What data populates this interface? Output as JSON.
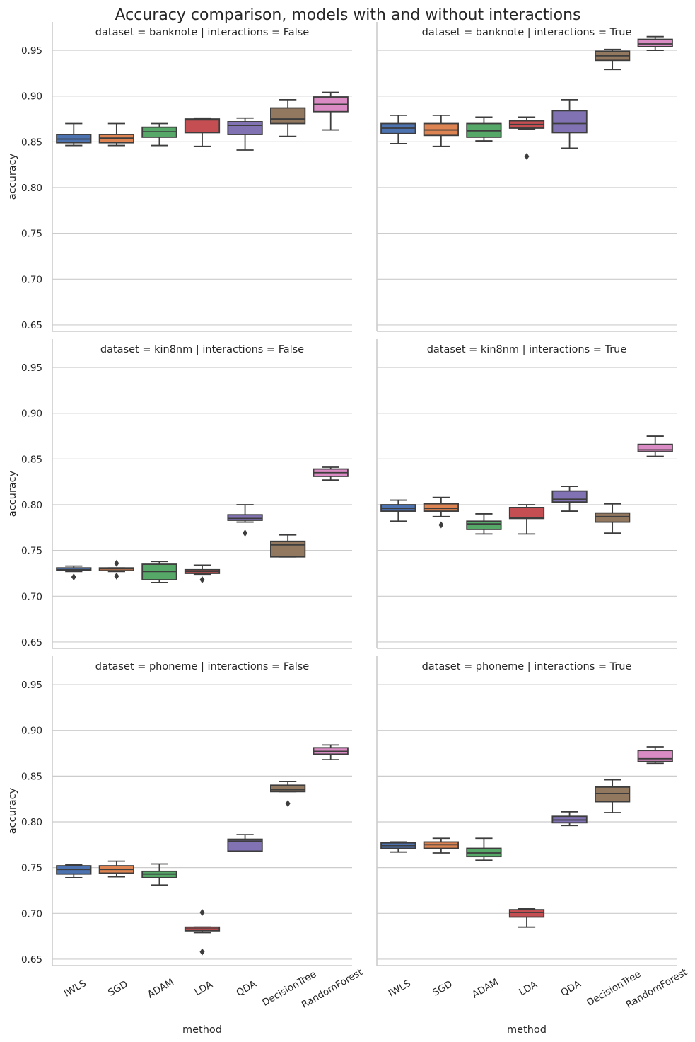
{
  "chart_data": {
    "type": "box",
    "suptitle": "Accuracy comparison, models with and without interactions",
    "xlabel": "method",
    "ylabel": "accuracy",
    "ylim": [
      0.643,
      0.981
    ],
    "yticks": [
      "0.65",
      "0.70",
      "0.75",
      "0.80",
      "0.85",
      "0.90",
      "0.95"
    ],
    "categories": [
      "IWLS",
      "SGD",
      "ADAM",
      "LDA",
      "QDA",
      "DecisionTree",
      "RandomForest"
    ],
    "colors": [
      "#4c72b0",
      "#dd8452",
      "#55a868",
      "#c44e52",
      "#8172b3",
      "#937860",
      "#da8bc3"
    ],
    "grid": "horizontal",
    "panels": [
      {
        "title": "dataset = banknote | interactions = False",
        "boxes": [
          {
            "min": 0.846,
            "q1": 0.849,
            "median": 0.853,
            "q3": 0.858,
            "max": 0.87,
            "outliers": []
          },
          {
            "min": 0.846,
            "q1": 0.849,
            "median": 0.854,
            "q3": 0.858,
            "max": 0.87,
            "outliers": []
          },
          {
            "min": 0.846,
            "q1": 0.855,
            "median": 0.861,
            "q3": 0.866,
            "max": 0.87,
            "outliers": []
          },
          {
            "min": 0.845,
            "q1": 0.86,
            "median": 0.874,
            "q3": 0.875,
            "max": 0.876,
            "outliers": []
          },
          {
            "min": 0.841,
            "q1": 0.858,
            "median": 0.868,
            "q3": 0.872,
            "max": 0.876,
            "outliers": []
          },
          {
            "min": 0.856,
            "q1": 0.87,
            "median": 0.875,
            "q3": 0.887,
            "max": 0.896,
            "outliers": []
          },
          {
            "min": 0.863,
            "q1": 0.883,
            "median": 0.891,
            "q3": 0.899,
            "max": 0.904,
            "outliers": []
          }
        ]
      },
      {
        "title": "dataset = banknote | interactions = True",
        "boxes": [
          {
            "min": 0.848,
            "q1": 0.859,
            "median": 0.865,
            "q3": 0.87,
            "max": 0.879,
            "outliers": []
          },
          {
            "min": 0.845,
            "q1": 0.857,
            "median": 0.863,
            "q3": 0.87,
            "max": 0.879,
            "outliers": []
          },
          {
            "min": 0.851,
            "q1": 0.855,
            "median": 0.862,
            "q3": 0.87,
            "max": 0.877,
            "outliers": []
          },
          {
            "min": 0.864,
            "q1": 0.865,
            "median": 0.869,
            "q3": 0.873,
            "max": 0.877,
            "outliers": [
              0.834
            ]
          },
          {
            "min": 0.843,
            "q1": 0.86,
            "median": 0.87,
            "q3": 0.884,
            "max": 0.896,
            "outliers": []
          },
          {
            "min": 0.929,
            "q1": 0.939,
            "median": 0.944,
            "q3": 0.949,
            "max": 0.951,
            "outliers": []
          },
          {
            "min": 0.95,
            "q1": 0.954,
            "median": 0.957,
            "q3": 0.962,
            "max": 0.965,
            "outliers": []
          }
        ]
      },
      {
        "title": "dataset = kin8nm | interactions = False",
        "boxes": [
          {
            "min": 0.727,
            "q1": 0.728,
            "median": 0.729,
            "q3": 0.731,
            "max": 0.733,
            "outliers": [
              0.721
            ]
          },
          {
            "min": 0.727,
            "q1": 0.728,
            "median": 0.73,
            "q3": 0.731,
            "max": 0.731,
            "outliers": [
              0.722,
              0.736
            ]
          },
          {
            "min": 0.715,
            "q1": 0.718,
            "median": 0.727,
            "q3": 0.735,
            "max": 0.738,
            "outliers": []
          },
          {
            "min": 0.724,
            "q1": 0.725,
            "median": 0.727,
            "q3": 0.729,
            "max": 0.734,
            "outliers": [
              0.718
            ]
          },
          {
            "min": 0.781,
            "q1": 0.783,
            "median": 0.785,
            "q3": 0.789,
            "max": 0.8,
            "outliers": [
              0.769
            ]
          },
          {
            "min": 0.743,
            "q1": 0.743,
            "median": 0.756,
            "q3": 0.76,
            "max": 0.767,
            "outliers": []
          },
          {
            "min": 0.827,
            "q1": 0.831,
            "median": 0.835,
            "q3": 0.839,
            "max": 0.841,
            "outliers": []
          }
        ]
      },
      {
        "title": "dataset = kin8nm | interactions = True",
        "boxes": [
          {
            "min": 0.782,
            "q1": 0.793,
            "median": 0.796,
            "q3": 0.8,
            "max": 0.805,
            "outliers": []
          },
          {
            "min": 0.787,
            "q1": 0.793,
            "median": 0.796,
            "q3": 0.801,
            "max": 0.808,
            "outliers": [
              0.778
            ]
          },
          {
            "min": 0.768,
            "q1": 0.773,
            "median": 0.779,
            "q3": 0.782,
            "max": 0.79,
            "outliers": []
          },
          {
            "min": 0.768,
            "q1": 0.785,
            "median": 0.786,
            "q3": 0.797,
            "max": 0.8,
            "outliers": []
          },
          {
            "min": 0.793,
            "q1": 0.803,
            "median": 0.806,
            "q3": 0.815,
            "max": 0.82,
            "outliers": []
          },
          {
            "min": 0.769,
            "q1": 0.781,
            "median": 0.787,
            "q3": 0.791,
            "max": 0.801,
            "outliers": []
          },
          {
            "min": 0.853,
            "q1": 0.858,
            "median": 0.86,
            "q3": 0.866,
            "max": 0.875,
            "outliers": []
          }
        ]
      },
      {
        "title": "dataset = phoneme | interactions = False",
        "boxes": [
          {
            "min": 0.739,
            "q1": 0.743,
            "median": 0.748,
            "q3": 0.752,
            "max": 0.753,
            "outliers": []
          },
          {
            "min": 0.74,
            "q1": 0.744,
            "median": 0.748,
            "q3": 0.752,
            "max": 0.757,
            "outliers": []
          },
          {
            "min": 0.731,
            "q1": 0.739,
            "median": 0.743,
            "q3": 0.746,
            "max": 0.754,
            "outliers": []
          },
          {
            "min": 0.679,
            "q1": 0.681,
            "median": 0.683,
            "q3": 0.685,
            "max": 0.685,
            "outliers": [
              0.701,
              0.658
            ]
          },
          {
            "min": 0.768,
            "q1": 0.768,
            "median": 0.779,
            "q3": 0.781,
            "max": 0.786,
            "outliers": []
          },
          {
            "min": 0.833,
            "q1": 0.833,
            "median": 0.835,
            "q3": 0.84,
            "max": 0.844,
            "outliers": [
              0.82
            ]
          },
          {
            "min": 0.868,
            "q1": 0.874,
            "median": 0.877,
            "q3": 0.881,
            "max": 0.884,
            "outliers": []
          }
        ]
      },
      {
        "title": "dataset = phoneme | interactions = True",
        "boxes": [
          {
            "min": 0.767,
            "q1": 0.771,
            "median": 0.774,
            "q3": 0.777,
            "max": 0.778,
            "outliers": []
          },
          {
            "min": 0.766,
            "q1": 0.771,
            "median": 0.775,
            "q3": 0.778,
            "max": 0.782,
            "outliers": []
          },
          {
            "min": 0.758,
            "q1": 0.762,
            "median": 0.766,
            "q3": 0.771,
            "max": 0.782,
            "outliers": []
          },
          {
            "min": 0.685,
            "q1": 0.696,
            "median": 0.701,
            "q3": 0.704,
            "max": 0.705,
            "outliers": []
          },
          {
            "min": 0.796,
            "q1": 0.799,
            "median": 0.802,
            "q3": 0.806,
            "max": 0.811,
            "outliers": []
          },
          {
            "min": 0.81,
            "q1": 0.822,
            "median": 0.831,
            "q3": 0.838,
            "max": 0.846,
            "outliers": []
          },
          {
            "min": 0.864,
            "q1": 0.866,
            "median": 0.869,
            "q3": 0.878,
            "max": 0.882,
            "outliers": []
          }
        ]
      }
    ]
  }
}
